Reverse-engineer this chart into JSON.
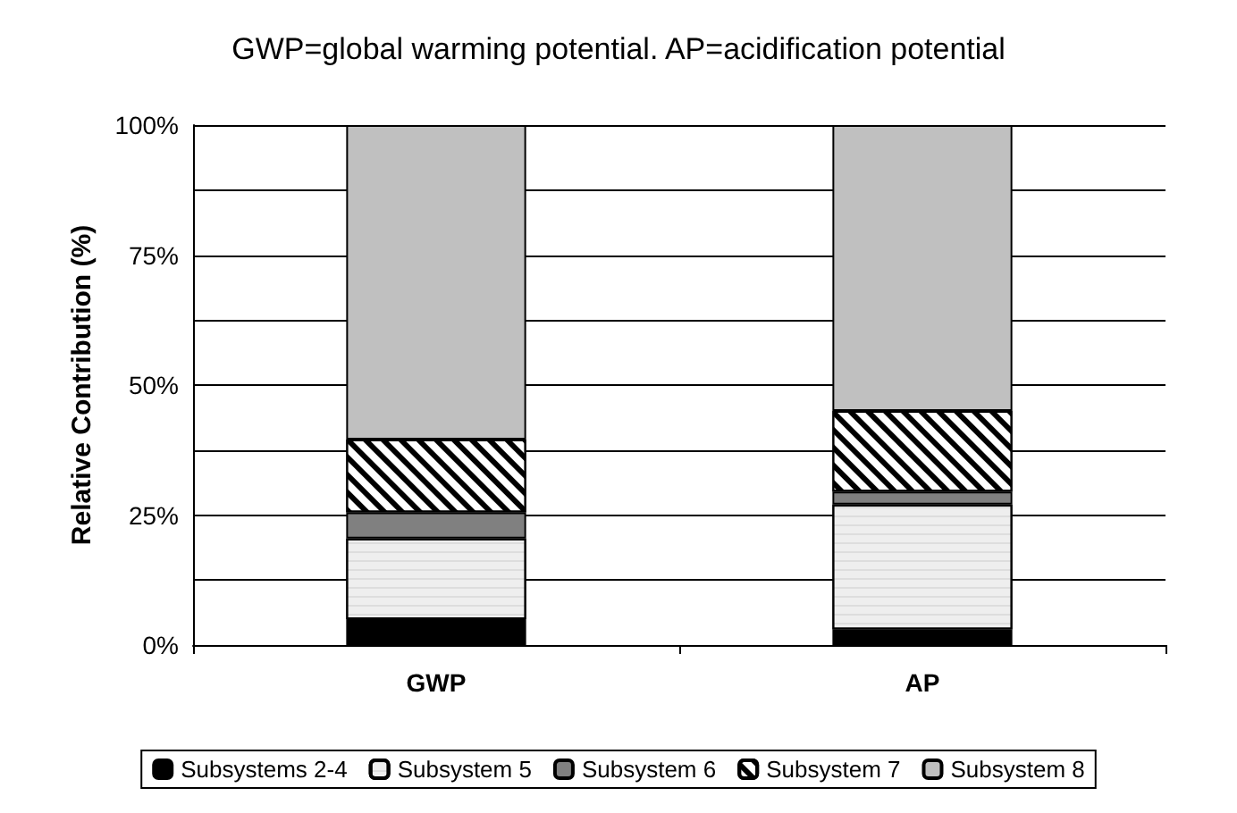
{
  "chart_data": {
    "type": "bar",
    "stacked": true,
    "title": "GWP=global warming potential. AP=acidification potential",
    "ylabel": "Relative Contribution (%)",
    "categories": [
      "GWP",
      "AP"
    ],
    "series": [
      {
        "name": "Subsystems 2-4",
        "color": "#000000",
        "values": [
          5,
          3
        ]
      },
      {
        "name": "Subsystem 5",
        "color": "#eeeeee",
        "values": [
          15.5,
          24
        ]
      },
      {
        "name": "Subsystem 6",
        "color": "#808080",
        "values": [
          5,
          2.5
        ]
      },
      {
        "name": "Subsystem 7",
        "color": "#ffffff",
        "values": [
          14,
          15.5
        ]
      },
      {
        "name": "Subsystem 8",
        "color": "#c0c0c0",
        "values": [
          60.5,
          55
        ]
      }
    ],
    "ylim": [
      0,
      100
    ],
    "yticks": [
      {
        "value": 0,
        "label": "0%"
      },
      {
        "value": 12.5,
        "label": null
      },
      {
        "value": 25,
        "label": "25%"
      },
      {
        "value": 37.5,
        "label": null
      },
      {
        "value": 50,
        "label": "50%"
      },
      {
        "value": 62.5,
        "label": null
      },
      {
        "value": 75,
        "label": "75%"
      },
      {
        "value": 87.5,
        "label": null
      },
      {
        "value": 100,
        "label": "100%"
      }
    ],
    "grid": true,
    "legend": "bottom"
  }
}
